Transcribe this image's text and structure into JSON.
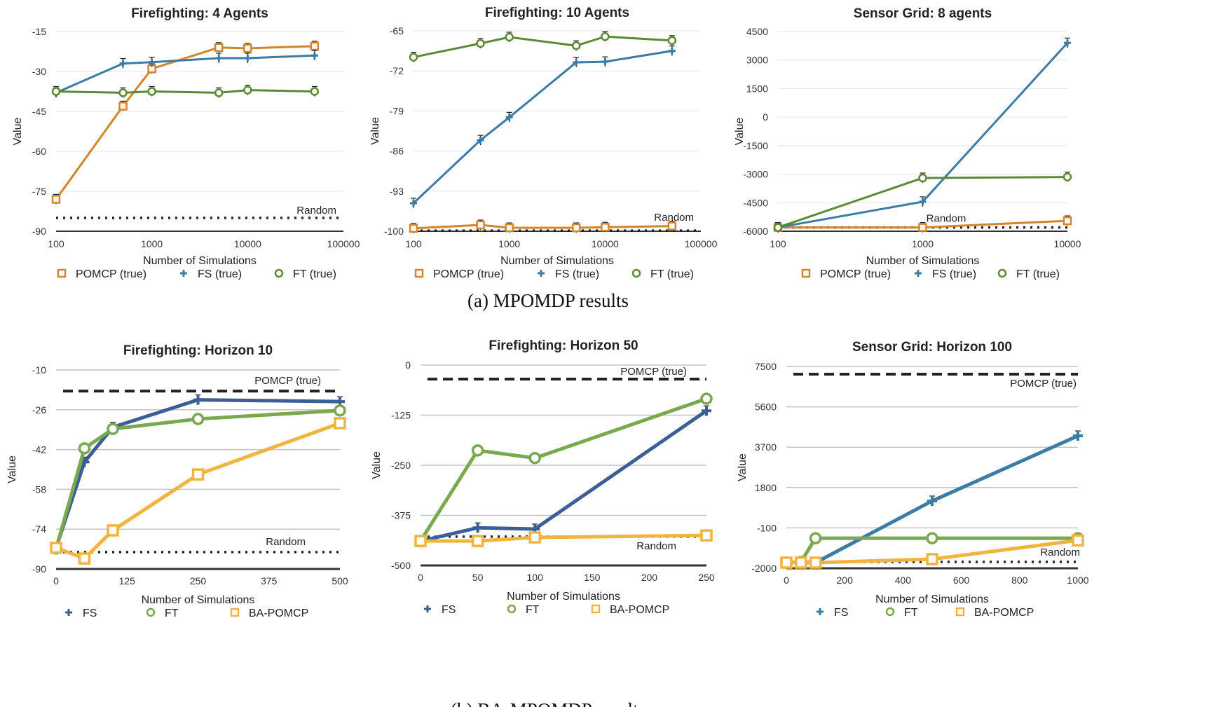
{
  "captions": [
    "(a) MPOMDP results",
    "(b) BA-MPOMDP results"
  ],
  "chart_data": [
    {
      "type": "line",
      "title": "Firefighting: 4 Agents",
      "xlabel": "Number of Simulations",
      "ylabel": "Value",
      "xscale": "log",
      "xticks": [
        100,
        1000,
        10000,
        100000
      ],
      "xlim": [
        100,
        100000
      ],
      "yticks": [
        -15,
        -30,
        -45,
        -60,
        -75,
        -90
      ],
      "ylim": [
        -90,
        -15
      ],
      "grid": true,
      "legend": "bottom",
      "x": [
        100,
        500,
        1000,
        5000,
        10000,
        50000
      ],
      "series": [
        {
          "name": "POMCP (true)",
          "marker": "square",
          "color": "#d4842a",
          "values": [
            -78,
            -43,
            -29,
            -21,
            -21.3,
            -20.5
          ]
        },
        {
          "name": "FS (true)",
          "marker": "plus",
          "color": "#3a7ca5",
          "values": [
            -38,
            -27,
            -26.5,
            -25,
            -25,
            -24
          ]
        },
        {
          "name": "FT (true)",
          "marker": "circle",
          "color": "#5a8a35",
          "values": [
            -37.5,
            -38,
            -37.5,
            -38,
            -37,
            -37.5
          ]
        }
      ],
      "references": [
        {
          "label": "Random",
          "value": -85,
          "style": "dotted"
        }
      ]
    },
    {
      "type": "line",
      "title": "Firefighting: 10 Agents",
      "xlabel": "Number of Simulations",
      "ylabel": "Value",
      "xscale": "log",
      "xticks": [
        100,
        1000,
        10000,
        100000
      ],
      "xlim": [
        100,
        100000
      ],
      "yticks": [
        -65,
        -72,
        -79,
        -86,
        -93,
        -100
      ],
      "ylim": [
        -100,
        -65
      ],
      "grid": true,
      "legend": "bottom",
      "x": [
        100,
        500,
        1000,
        5000,
        10000,
        50000
      ],
      "series": [
        {
          "name": "POMCP (true)",
          "marker": "square",
          "color": "#d4842a",
          "values": [
            -99.5,
            -98.9,
            -99.4,
            -99.4,
            -99.3,
            -99.1
          ]
        },
        {
          "name": "FS (true)",
          "marker": "plus",
          "color": "#3a7ca5",
          "values": [
            -95.1,
            -84.1,
            -80.1,
            -70.5,
            -70.4,
            -68.5
          ]
        },
        {
          "name": "FT (true)",
          "marker": "circle",
          "color": "#5a8a35",
          "values": [
            -69.6,
            -67.2,
            -66.1,
            -67.6,
            -66,
            -66.7
          ]
        }
      ],
      "references": [
        {
          "label": "Random",
          "value": -99.9,
          "style": "dotted"
        }
      ]
    },
    {
      "type": "line",
      "title": "Sensor Grid: 8 agents",
      "xlabel": "Number of Simulations",
      "ylabel": "Value",
      "xscale": "log",
      "xticks": [
        100,
        1000,
        10000
      ],
      "xlim": [
        100,
        10000
      ],
      "yticks": [
        4500,
        3000,
        1500,
        0,
        -1500,
        -3000,
        -4500,
        -6000
      ],
      "ylim": [
        -6000,
        4500
      ],
      "grid": true,
      "legend": "bottom",
      "x": [
        100,
        1000,
        10000
      ],
      "series": [
        {
          "name": "POMCP (true)",
          "marker": "square",
          "color": "#d4842a",
          "values": [
            -5800,
            -5800,
            -5450
          ]
        },
        {
          "name": "FS (true)",
          "marker": "plus",
          "color": "#3a7ca5",
          "values": [
            -5800,
            -4450,
            3900
          ]
        },
        {
          "name": "FT (true)",
          "marker": "circle",
          "color": "#5a8a35",
          "values": [
            -5800,
            -3200,
            -3150
          ]
        }
      ],
      "references": [
        {
          "label": "Random",
          "value": -5800,
          "style": "dotted"
        }
      ]
    },
    {
      "type": "line",
      "title": "Firefighting: Horizon 10",
      "xlabel": "Number of Simulations",
      "ylabel": "Value",
      "xscale": "linear",
      "xticks": [
        0,
        125,
        250,
        375,
        500
      ],
      "xlim": [
        0,
        500
      ],
      "yticks": [
        -10,
        -26,
        -42,
        -58,
        -74,
        -90
      ],
      "ylim": [
        -90,
        -10
      ],
      "grid": true,
      "legend": "bottom",
      "x": [
        0,
        50,
        100,
        250,
        500
      ],
      "series": [
        {
          "name": "FS",
          "marker": "plus",
          "color": "#3b5e96",
          "values": [
            -81.5,
            -47,
            -33,
            -22,
            -22.7
          ]
        },
        {
          "name": "FT",
          "marker": "circle",
          "color": "#79a84e",
          "values": [
            -81.8,
            -41.5,
            -33.7,
            -29.7,
            -26.3
          ]
        },
        {
          "name": "BA-POMCP",
          "marker": "square",
          "color": "#f0b440",
          "values": [
            -81.5,
            -85.8,
            -74.5,
            -52,
            -31.4
          ]
        }
      ],
      "references": [
        {
          "label": "POMCP (true)",
          "value": -18.5,
          "style": "dashed"
        },
        {
          "label": "Random",
          "value": -83.2,
          "style": "dotted"
        }
      ]
    },
    {
      "type": "line",
      "title": "Firefighting: Horizon 50",
      "xlabel": "Number of Simulations",
      "ylabel": "Value",
      "xscale": "linear",
      "xticks": [
        0,
        50,
        100,
        150,
        200,
        250
      ],
      "xlim": [
        0,
        250
      ],
      "yticks": [
        0,
        -125,
        -250,
        -375,
        -500
      ],
      "ylim": [
        -500,
        0
      ],
      "grid": true,
      "legend": "bottom",
      "x": [
        0,
        50,
        100,
        250
      ],
      "series": [
        {
          "name": "FS",
          "marker": "plus",
          "color": "#3b5e96",
          "values": [
            -439,
            -406,
            -409,
            -114
          ]
        },
        {
          "name": "FT",
          "marker": "circle",
          "color": "#79a84e",
          "values": [
            -439,
            -213,
            -232,
            -84
          ]
        },
        {
          "name": "BA-POMCP",
          "marker": "square",
          "color": "#f0b440",
          "values": [
            -439,
            -439,
            -430,
            -425
          ]
        }
      ],
      "references": [
        {
          "label": "POMCP (true)",
          "value": -35,
          "style": "dashed"
        },
        {
          "label": "Random",
          "value": -428,
          "style": "dotted"
        }
      ]
    },
    {
      "type": "line",
      "title": "Sensor Grid: Horizon 100",
      "xlabel": "Number of Simulations",
      "ylabel": "Value",
      "xscale": "linear",
      "xticks": [
        0,
        200,
        400,
        600,
        800,
        1000
      ],
      "xlim": [
        0,
        1000
      ],
      "yticks": [
        7500,
        5600,
        3700,
        1800,
        -100,
        -2000
      ],
      "ylim": [
        -2000,
        7500
      ],
      "grid": true,
      "legend": "bottom",
      "x": [
        0,
        50,
        100,
        500,
        1000
      ],
      "series": [
        {
          "name": "FS",
          "marker": "plus",
          "color": "#3a7ca5",
          "values": [
            -1736,
            -1736,
            -1736,
            1168,
            4233
          ]
        },
        {
          "name": "FT",
          "marker": "circle",
          "color": "#79a84e",
          "values": [
            -1736,
            -1700,
            -586,
            -586,
            -586
          ]
        },
        {
          "name": "BA-POMCP",
          "marker": "square",
          "color": "#f0b440",
          "values": [
            -1736,
            -1736,
            -1736,
            -1571,
            -685
          ]
        }
      ],
      "references": [
        {
          "label": "POMCP (true)",
          "value": 7137,
          "style": "dashed"
        },
        {
          "label": "Random",
          "value": -1700,
          "style": "dotted"
        }
      ]
    }
  ]
}
